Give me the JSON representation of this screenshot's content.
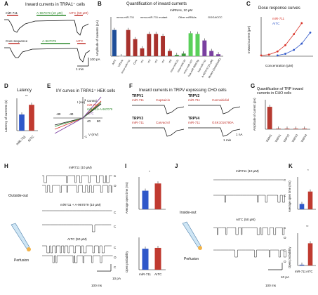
{
  "panels": {
    "A": {
      "label": "A",
      "title": "Inward currents in TRPA1⁺ cells",
      "row1": {
        "left": "miR-711",
        "mid": "A-967079 (10 μM)",
        "right": "AITC (50 μM)"
      },
      "row2": {
        "left": "Core sequence",
        "mid": "A-967079",
        "right": "AITC"
      },
      "scale_y": "100 pA",
      "scale_x": "1 min"
    },
    "B": {
      "label": "B",
      "title": "Quantification of inward currents",
      "header": "miRNAs, 10 μM",
      "groups": [
        "mmu-miR-711",
        "mmu-miR-711 mutant",
        "Other miRNAs",
        "GGGACCC"
      ],
      "ylabel": "Amplitude of currents (pA)",
      "legend": [
        "AITC (50 μM)",
        "Vehicle"
      ],
      "xlabels": [
        "AITC",
        "Vehicle",
        "mmu-miR-711",
        "Core",
        "m1",
        "m2",
        "m3",
        "m4",
        "m5",
        "mmu-miR-21",
        "mmu-miR-34",
        "mmu-miR-107",
        "hsa-miR-5699-5p",
        "hsa-miR-711",
        "A-967079 (10 μM)",
        "Mutant (GAGAAAC)"
      ]
    },
    "C": {
      "label": "C",
      "title": "Dose response curves",
      "legend": [
        "miR-711",
        "AITC"
      ],
      "xlabel": "Concentration (μM)",
      "ylabel": "Inward current (pA)"
    },
    "D": {
      "label": "D",
      "title": "Latency",
      "ylabel": "Latency of currents (s)",
      "sig": "**",
      "cats": [
        "miR-711",
        "AITC"
      ]
    },
    "E": {
      "label": "E",
      "title": "I/V curves in TRPA1⁺ HEK cells",
      "ilabel": "I (nA)",
      "vlabel": "V (mV)",
      "legend": [
        "Control",
        "miR-711",
        "miR-711+A-967079",
        "AITC"
      ]
    },
    "F": {
      "label": "F",
      "title": "Inward currents in TRPV expressing CHO cells",
      "traces": [
        {
          "ch": "TRPV1",
          "a": "miR-711",
          "b": "Capsaicin"
        },
        {
          "ch": "TRPV2",
          "a": "miR-711",
          "b": "Cannabidiol"
        },
        {
          "ch": "TRPV3",
          "a": "miR-711",
          "b": "Carvacrol"
        },
        {
          "ch": "TRPV4",
          "a": "miR-711",
          "b": "GSK1016790A"
        }
      ],
      "scale_y": "1 nA",
      "scale_x": "1 min"
    },
    "G": {
      "label": "G",
      "title": "Quantification of TRP inward currents in CHO cells",
      "ylabel": "Amplitude of current (pA)",
      "cats": [
        "TRPA1",
        "TRPV1",
        "TRPV2",
        "TRPV3",
        "TRPV4"
      ]
    },
    "H": {
      "label": "H",
      "side": "Outside-out",
      "perf": "Perfusion",
      "t1": "miR711 (10 μM)",
      "t2": "miR711 + A-967079 (10 μM)",
      "t3": "AITC (50 μM)",
      "c": "C",
      "o": "O",
      "scale_y": "10 pA",
      "scale_x": "100 ms"
    },
    "I": {
      "label": "I",
      "sig": "*",
      "ylabel_top": "Average open time (ms)",
      "ylabel_bot": "Open probability",
      "cats": [
        "miR-711",
        "AITC"
      ]
    },
    "J": {
      "label": "J",
      "side": "Inside-out",
      "perf": "Perfusion",
      "t1": "miR711 (10 μM)",
      "t2": "AITC (50 μM)",
      "c": "C",
      "o": "O",
      "scale_y": "10 pA",
      "scale_x": "100 ms"
    },
    "K": {
      "label": "K",
      "sig_top": "*",
      "sig_bot": "**",
      "ylabel_top": "Average open time (ms)",
      "ylabel_bot": "Open probability",
      "cats": [
        "miR-711",
        "AITC"
      ]
    }
  },
  "chart_data": [
    {
      "id": "B",
      "type": "bar",
      "ylim": [
        0,
        300
      ],
      "categories": [
        "AITC",
        "Vehicle",
        "mmu-miR-711",
        "Core",
        "m1",
        "m2",
        "m3",
        "m4",
        "m5",
        "mmu-miR-21",
        "mmu-miR-34",
        "mmu-miR-107",
        "hsa-miR-5699-5p",
        "hsa-miR-711",
        "A-967079",
        "Mutant"
      ],
      "values": [
        200,
        0,
        200,
        130,
        60,
        170,
        170,
        155,
        40,
        10,
        20,
        175,
        170,
        120,
        40,
        15
      ],
      "colors": [
        "#1f4e99",
        "#dddddd",
        "#a8322d",
        "#a8322d",
        "#a8322d",
        "#a8322d",
        "#a8322d",
        "#a8322d",
        "#a8322d",
        "#3c9a3c",
        "#3c9a3c",
        "#5ad05a",
        "#5ad05a",
        "#7a3fa0",
        "#7a3fa0",
        "#7a3fa0"
      ]
    },
    {
      "id": "C",
      "type": "line",
      "xlim": [
        0.1,
        100
      ],
      "ylim": [
        0,
        250
      ],
      "series": [
        {
          "name": "miR-711",
          "x": [
            0.1,
            0.3,
            1,
            3,
            10,
            30
          ],
          "y": [
            5,
            10,
            30,
            70,
            140,
            210
          ],
          "color": "#d9352b"
        },
        {
          "name": "AITC",
          "x": [
            1,
            3,
            10,
            30,
            100
          ],
          "y": [
            5,
            15,
            40,
            80,
            150
          ],
          "color": "#2f57c9"
        }
      ]
    },
    {
      "id": "D",
      "type": "bar",
      "categories": [
        "miR-711",
        "AITC"
      ],
      "values": [
        5,
        8
      ],
      "ylim": [
        0,
        10
      ],
      "colors": [
        "#2f57c9",
        "#c03a30"
      ]
    },
    {
      "id": "G",
      "type": "bar",
      "categories": [
        "TRPA1",
        "TRPV1",
        "TRPV2",
        "TRPV3",
        "TRPV4"
      ],
      "values": [
        190,
        5,
        5,
        5,
        5
      ],
      "ylim": [
        0,
        250
      ],
      "colors": [
        "#b63a30",
        "#b63a30",
        "#b63a30",
        "#b63a30",
        "#b63a30"
      ]
    },
    {
      "id": "I-top",
      "type": "bar",
      "categories": [
        "miR-711",
        "AITC"
      ],
      "values": [
        23,
        32
      ],
      "ylim": [
        0,
        40
      ],
      "colors": [
        "#2f57c9",
        "#c03a30"
      ]
    },
    {
      "id": "I-bot",
      "type": "bar",
      "categories": [
        "miR-711",
        "AITC"
      ],
      "values": [
        0.26,
        0.27
      ],
      "ylim": [
        0,
        0.4
      ],
      "colors": [
        "#2f57c9",
        "#c03a30"
      ]
    },
    {
      "id": "K-top",
      "type": "bar",
      "categories": [
        "miR-711",
        "AITC"
      ],
      "values": [
        10,
        33
      ],
      "ylim": [
        0,
        60
      ],
      "colors": [
        "#2f57c9",
        "#c03a30"
      ]
    },
    {
      "id": "K-bot",
      "type": "bar",
      "categories": [
        "miR-711",
        "AITC"
      ],
      "values": [
        0.02,
        0.55
      ],
      "ylim": [
        0,
        0.8
      ],
      "colors": [
        "#2f57c9",
        "#c03a30"
      ]
    }
  ]
}
